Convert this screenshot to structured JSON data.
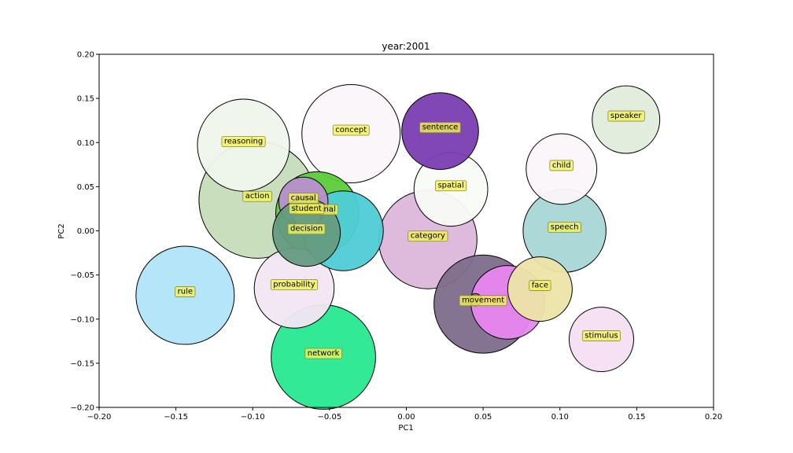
{
  "chart_data": {
    "type": "scatter",
    "title": "year:2001",
    "xlabel": "PC1",
    "ylabel": "PC2",
    "xlim": [
      -0.2,
      0.2
    ],
    "ylim": [
      -0.2,
      0.2
    ],
    "xticks": [
      "−0.20",
      "−0.15",
      "−0.10",
      "−0.05",
      "0.00",
      "0.05",
      "0.10",
      "0.15",
      "0.20"
    ],
    "yticks": [
      "−0.20",
      "−0.15",
      "−0.10",
      "−0.05",
      "0.00",
      "0.05",
      "0.10",
      "0.15",
      "0.20"
    ],
    "grid": false,
    "label_bg": "#f2f25a",
    "points": [
      {
        "label": "action",
        "x": -0.097,
        "y": 0.035,
        "r": 0.038,
        "color": "#c5dcb8"
      },
      {
        "label": "network",
        "x": -0.054,
        "y": -0.143,
        "r": 0.034,
        "color": "#27e88f"
      },
      {
        "label": "rule",
        "x": -0.144,
        "y": -0.073,
        "r": 0.032,
        "color": "#b0e4f8"
      },
      {
        "label": "category",
        "x": 0.014,
        "y": -0.01,
        "r": 0.032,
        "color": "#dcb6da"
      },
      {
        "label": "movement",
        "x": 0.05,
        "y": -0.083,
        "r": 0.032,
        "color": "#7e6d8b"
      },
      {
        "label": "concept",
        "x": -0.036,
        "y": 0.11,
        "r": 0.032,
        "color": "#fbf6f9"
      },
      {
        "label": "reasoning",
        "x": -0.106,
        "y": 0.097,
        "r": 0.03,
        "color": "#f0f6ec"
      },
      {
        "label": "relational",
        "x": -0.058,
        "y": 0.02,
        "r": 0.027,
        "color": "#5bcd3a"
      },
      {
        "label": "speech",
        "x": 0.103,
        "y": 0.0,
        "r": 0.027,
        "color": "#a8d7d5"
      },
      {
        "label": "probability",
        "x": -0.073,
        "y": -0.065,
        "r": 0.026,
        "color": "#f3e6f3"
      },
      {
        "label": "",
        "x": -0.041,
        "y": 0.0,
        "r": 0.026,
        "color": "#4fccd6"
      },
      {
        "label": "",
        "x": 0.066,
        "y": -0.081,
        "r": 0.024,
        "color": "#e886ef"
      },
      {
        "label": "spatial",
        "x": 0.029,
        "y": 0.047,
        "r": 0.024,
        "color": "#f8fbf5"
      },
      {
        "label": "child",
        "x": 0.101,
        "y": 0.07,
        "r": 0.023,
        "color": "#fbf6fa"
      },
      {
        "label": "sentence",
        "x": 0.022,
        "y": 0.113,
        "r": 0.025,
        "color": "#7a3db0"
      },
      {
        "label": "speaker",
        "x": 0.143,
        "y": 0.126,
        "r": 0.022,
        "color": "#e1ecdc"
      },
      {
        "label": "face",
        "x": 0.087,
        "y": -0.066,
        "r": 0.021,
        "color": "#ede4a8"
      },
      {
        "label": "stimulus",
        "x": 0.127,
        "y": -0.123,
        "r": 0.021,
        "color": "#f5dff3"
      },
      {
        "label": "causal",
        "x": -0.067,
        "y": 0.033,
        "r": 0.016,
        "color": "#b88fcd"
      },
      {
        "label": "student",
        "x": -0.065,
        "y": 0.021,
        "r": 0.01,
        "color": "#c3e4a0"
      },
      {
        "label": "decision",
        "x": -0.065,
        "y": -0.002,
        "r": 0.022,
        "color": "#659b80"
      },
      {
        "label": "",
        "x": 0.045,
        "y": -0.078,
        "r": 0.004,
        "color": "#8a7d66"
      }
    ]
  }
}
